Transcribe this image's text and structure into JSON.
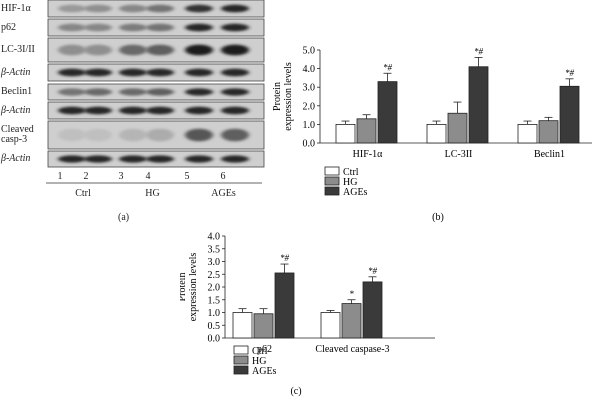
{
  "panel_a": {
    "letter": "(a)",
    "rows": [
      {
        "label": "HIF-1α",
        "y": 0,
        "h": 17,
        "intensity": [
          0.25,
          0.3,
          0.35,
          0.45,
          0.8,
          0.85
        ]
      },
      {
        "label": "p62",
        "y": 19,
        "h": 17,
        "intensity": [
          0.35,
          0.35,
          0.4,
          0.45,
          0.85,
          0.85
        ]
      },
      {
        "label": "LC-3I/II",
        "y": 38,
        "h": 24,
        "intensity": [
          0.3,
          0.3,
          0.5,
          0.55,
          0.9,
          0.9
        ]
      },
      {
        "label": "β-Actin",
        "y": 64,
        "h": 17,
        "intensity": [
          0.85,
          0.85,
          0.85,
          0.85,
          0.85,
          0.85
        ]
      },
      {
        "label": "Beclin1",
        "y": 84,
        "h": 16,
        "intensity": [
          0.45,
          0.5,
          0.5,
          0.55,
          0.85,
          0.85
        ]
      },
      {
        "label": "β-Actin",
        "y": 102,
        "h": 17,
        "intensity": [
          0.85,
          0.85,
          0.85,
          0.85,
          0.85,
          0.85
        ]
      },
      {
        "label": "Cleaved\ncasp-3",
        "y": 121,
        "h": 28,
        "intensity": [
          0.05,
          0.05,
          0.1,
          0.15,
          0.6,
          0.55
        ]
      },
      {
        "label": "β-Actin",
        "y": 151,
        "h": 16,
        "intensity": [
          0.85,
          0.85,
          0.85,
          0.85,
          0.85,
          0.85
        ]
      }
    ],
    "lanes": [
      "1",
      "2",
      "3",
      "4",
      "5",
      "6"
    ],
    "groups": [
      "Ctrl",
      "HG",
      "AGEs"
    ]
  },
  "chart_data": [
    {
      "type": "bar",
      "panel": "(b)",
      "ylabel": "Protein\nexpression levels",
      "ylim": [
        0,
        5.0
      ],
      "yticks": [
        "0.0",
        "1.0",
        "2.0",
        "3.0",
        "4.0",
        "5.0"
      ],
      "categories": [
        "HIF-1α",
        "LC-3II",
        "Beclin1"
      ],
      "series": [
        {
          "name": "Ctrl",
          "color": "#ffffff",
          "values": [
            1.0,
            1.0,
            1.0
          ],
          "errors": [
            0.18,
            0.18,
            0.18
          ]
        },
        {
          "name": "HG",
          "color": "#8c8c8c",
          "values": [
            1.3,
            1.6,
            1.2
          ],
          "errors": [
            0.22,
            0.6,
            0.18
          ]
        },
        {
          "name": "AGEs",
          "color": "#3a3a3a",
          "values": [
            3.3,
            4.1,
            3.05
          ],
          "errors": [
            0.45,
            0.5,
            0.4
          ]
        }
      ],
      "annotations": [
        [
          "",
          "",
          "*#"
        ],
        [
          "",
          "",
          "*#"
        ],
        [
          "",
          "",
          "*#"
        ]
      ]
    },
    {
      "type": "bar",
      "panel": "(c)",
      "ylabel": "Protein\nexpression levels",
      "ylim": [
        0,
        4.0
      ],
      "yticks": [
        "0.0",
        "0.5",
        "1.0",
        "1.5",
        "2.0",
        "2.5",
        "3.0",
        "3.5",
        "4.0"
      ],
      "categories": [
        "p62",
        "Cleaved caspase-3"
      ],
      "series": [
        {
          "name": "Ctrl",
          "color": "#ffffff",
          "values": [
            1.0,
            1.0
          ],
          "errors": [
            0.15,
            0.08
          ]
        },
        {
          "name": "HG",
          "color": "#8c8c8c",
          "values": [
            0.95,
            1.35
          ],
          "errors": [
            0.2,
            0.15
          ]
        },
        {
          "name": "AGEs",
          "color": "#3a3a3a",
          "values": [
            2.55,
            2.2
          ],
          "errors": [
            0.35,
            0.2
          ]
        }
      ],
      "annotations": [
        [
          "",
          "",
          "*#"
        ],
        [
          "",
          "*",
          "*#"
        ]
      ]
    }
  ]
}
